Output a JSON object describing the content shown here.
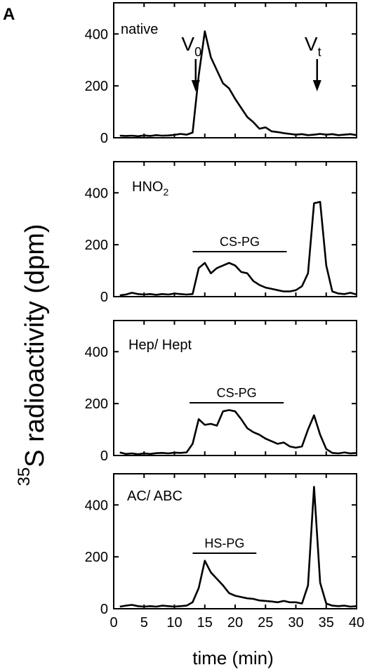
{
  "figure": {
    "panel_letter": "A",
    "ylabel_superscript": "35",
    "ylabel_main": "S radioactivity (dpm)",
    "xlabel": "time (min)"
  },
  "chart_data": [
    {
      "type": "line",
      "label": "native",
      "xlim": [
        0,
        40
      ],
      "ylim": [
        0,
        520
      ],
      "yticks": [
        0,
        200,
        400
      ],
      "x": [
        1,
        2,
        3,
        4,
        5,
        6,
        7,
        8,
        9,
        10,
        11,
        12,
        13,
        14,
        15,
        16,
        17,
        18,
        19,
        20,
        21,
        22,
        23,
        24,
        25,
        26,
        27,
        28,
        29,
        30,
        31,
        32,
        33,
        34,
        35,
        36,
        37,
        38,
        39,
        40
      ],
      "y": [
        8,
        7,
        8,
        6,
        9,
        7,
        10,
        8,
        9,
        11,
        15,
        12,
        20,
        240,
        410,
        310,
        260,
        210,
        190,
        150,
        115,
        80,
        60,
        35,
        40,
        25,
        22,
        18,
        15,
        12,
        14,
        10,
        12,
        15,
        12,
        14,
        10,
        12,
        14,
        10
      ],
      "annotations": [
        {
          "text": "V",
          "sub": "0",
          "x": 13.5
        },
        {
          "text": "V",
          "sub": "t",
          "x": 33.5
        }
      ]
    },
    {
      "type": "line",
      "label": "HNO",
      "label_sub": "2",
      "xlim": [
        0,
        40
      ],
      "ylim": [
        0,
        520
      ],
      "yticks": [
        0,
        200,
        400
      ],
      "x": [
        1,
        2,
        3,
        4,
        5,
        6,
        7,
        8,
        9,
        10,
        11,
        12,
        13,
        14,
        15,
        16,
        17,
        18,
        19,
        20,
        21,
        22,
        23,
        24,
        25,
        26,
        27,
        28,
        29,
        30,
        31,
        32,
        33,
        34,
        35,
        36,
        37,
        38,
        39,
        40
      ],
      "y": [
        5,
        8,
        15,
        10,
        8,
        10,
        7,
        10,
        8,
        12,
        10,
        8,
        10,
        110,
        130,
        90,
        110,
        120,
        130,
        120,
        95,
        90,
        60,
        45,
        35,
        30,
        25,
        20,
        20,
        25,
        40,
        90,
        360,
        365,
        120,
        20,
        12,
        10,
        15,
        8
      ],
      "bars": [
        {
          "text": "CS-PG",
          "x_start": 13,
          "x_end": 28.5
        }
      ]
    },
    {
      "type": "line",
      "label": "Hep/ Hept",
      "xlim": [
        0,
        40
      ],
      "ylim": [
        0,
        520
      ],
      "yticks": [
        0,
        200,
        400
      ],
      "x": [
        1,
        2,
        3,
        4,
        5,
        6,
        7,
        8,
        9,
        10,
        11,
        12,
        13,
        14,
        15,
        16,
        17,
        18,
        19,
        20,
        21,
        22,
        23,
        24,
        25,
        26,
        27,
        28,
        29,
        30,
        31,
        32,
        33,
        34,
        35,
        36,
        37,
        38,
        39,
        40
      ],
      "y": [
        12,
        6,
        8,
        5,
        8,
        6,
        9,
        10,
        8,
        11,
        10,
        12,
        45,
        140,
        118,
        122,
        115,
        170,
        175,
        170,
        140,
        105,
        90,
        80,
        65,
        55,
        45,
        50,
        35,
        30,
        35,
        100,
        155,
        80,
        25,
        10,
        8,
        12,
        8,
        10
      ],
      "bars": [
        {
          "text": "CS-PG",
          "x_start": 12.5,
          "x_end": 28
        }
      ]
    },
    {
      "type": "line",
      "label": "AC/ ABC",
      "xlim": [
        0,
        40
      ],
      "ylim": [
        0,
        520
      ],
      "yticks": [
        0,
        200,
        400
      ],
      "xticks": [
        0,
        5,
        10,
        15,
        20,
        25,
        30,
        35,
        40
      ],
      "x": [
        1,
        2,
        3,
        4,
        5,
        6,
        7,
        8,
        9,
        10,
        11,
        12,
        13,
        14,
        15,
        16,
        17,
        18,
        19,
        20,
        21,
        22,
        23,
        24,
        25,
        26,
        27,
        28,
        29,
        30,
        31,
        32,
        33,
        34,
        35,
        36,
        37,
        38,
        39,
        40
      ],
      "y": [
        8,
        12,
        15,
        10,
        8,
        10,
        8,
        12,
        10,
        8,
        10,
        12,
        25,
        80,
        185,
        140,
        115,
        90,
        60,
        50,
        45,
        40,
        38,
        32,
        30,
        28,
        25,
        30,
        25,
        25,
        20,
        90,
        470,
        100,
        20,
        12,
        10,
        12,
        8,
        10
      ],
      "bars": [
        {
          "text": "HS-PG",
          "x_start": 13,
          "x_end": 23.5
        }
      ]
    }
  ],
  "style": {
    "line_color": "#000000",
    "axis_color": "#000000",
    "background": "#ffffff"
  }
}
